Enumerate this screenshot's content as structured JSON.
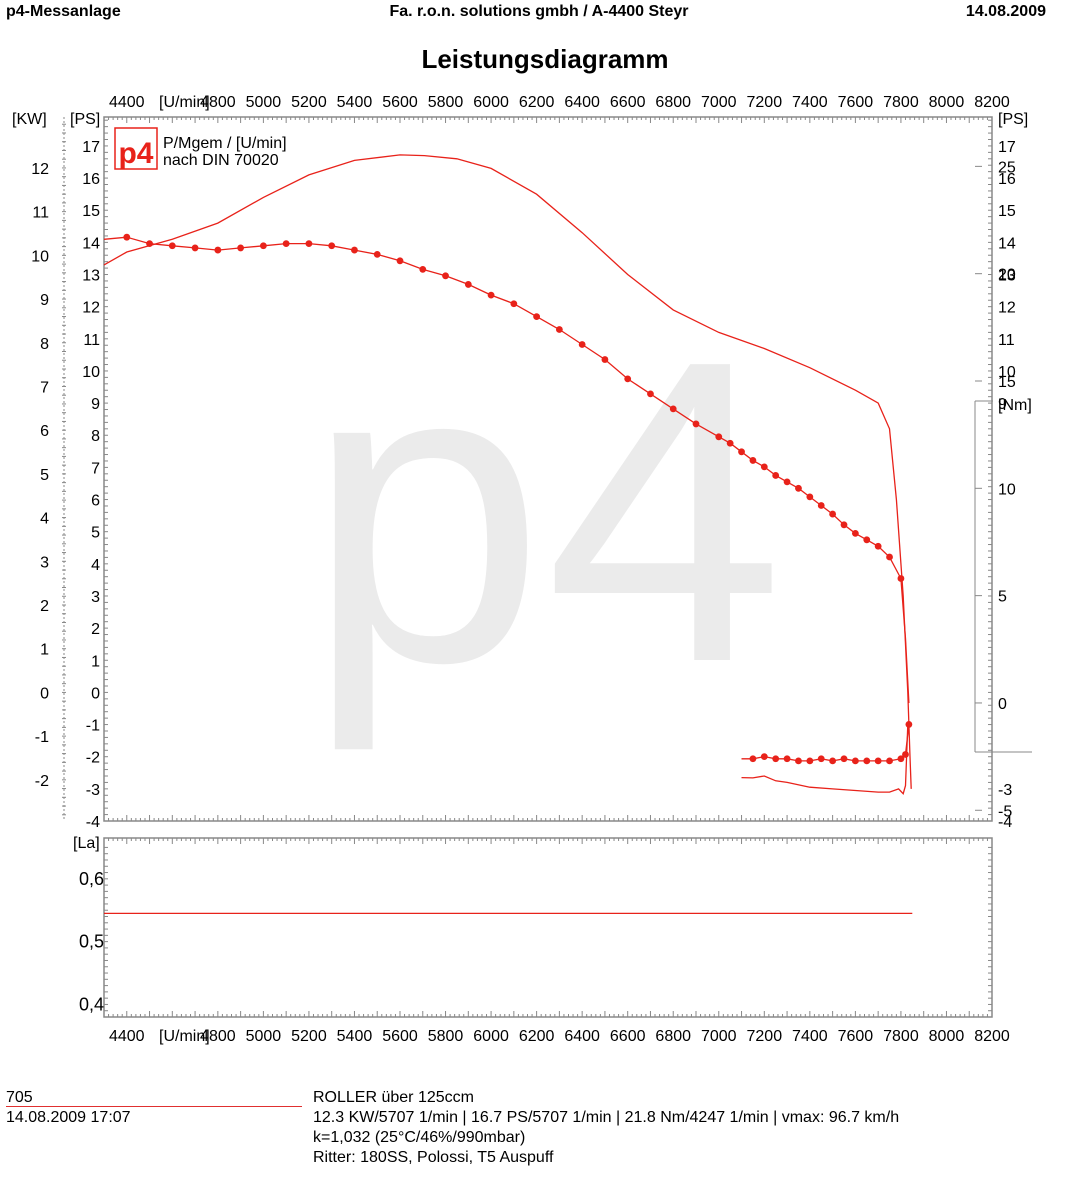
{
  "header": {
    "left": "p4-Messanlage",
    "center": "Fa. r.o.n. solutions gmbh / A-4400 Steyr",
    "right": "14.08.2009"
  },
  "title": "Leistungsdiagramm",
  "legend": {
    "logo": "p4",
    "line1": "P/Mgem / [U/min]",
    "line2": "nach DIN 70020"
  },
  "watermark": "p4",
  "colors": {
    "curve": "#e8221a",
    "axis": "#888888",
    "text": "#000000"
  },
  "chart_data": [
    {
      "type": "line",
      "title": "",
      "xlabel": "[U/min]",
      "ylabel_left_kw": "[KW]",
      "ylabel_left_ps": "[PS]",
      "ylabel_right_ps": "[PS]",
      "ylabel_right_nm": "[Nm]",
      "xlim": [
        4300,
        8200
      ],
      "x_ticks": [
        4400,
        4800,
        5000,
        5200,
        5400,
        5600,
        5800,
        6000,
        6200,
        6400,
        6600,
        6800,
        7000,
        7200,
        7400,
        7600,
        7800,
        8000,
        8200
      ],
      "kw_ticks": [
        12,
        11,
        10,
        9,
        8,
        7,
        6,
        5,
        4,
        3,
        2,
        1,
        0,
        -1,
        -2
      ],
      "ps_ticks": [
        17,
        16,
        15,
        14,
        13,
        12,
        11,
        10,
        9,
        8,
        7,
        6,
        5,
        4,
        3,
        2,
        1,
        0,
        -1,
        -2,
        -3,
        -4
      ],
      "ps_right_ticks": [
        17,
        16,
        15,
        14,
        13,
        12,
        11,
        10,
        9,
        -3,
        -4
      ],
      "nm_ticks": [
        25,
        20,
        15,
        10,
        5,
        0,
        -5
      ],
      "ylim_ps": [
        -4,
        17.9
      ],
      "ylim_nm": [
        -5.5,
        27.3
      ],
      "grid": false,
      "series": [
        {
          "unit": "PS",
          "x": [
            4300,
            4400,
            4600,
            4800,
            5000,
            5200,
            5400,
            5600,
            5707,
            5850,
            6000,
            6200,
            6400,
            6600,
            6800,
            7000,
            7200,
            7400,
            7600,
            7700,
            7750,
            7780,
            7810,
            7830,
            7840,
            7845
          ],
          "values": [
            13.3,
            13.7,
            14.1,
            14.6,
            15.4,
            16.1,
            16.55,
            16.72,
            16.7,
            16.6,
            16.3,
            15.5,
            14.3,
            13.0,
            11.9,
            11.2,
            10.7,
            10.1,
            9.4,
            9.0,
            8.2,
            6.0,
            3.0,
            0.0,
            -2.0,
            -3.0
          ]
        },
        {
          "unit": "Nm",
          "x": [
            4300,
            4400,
            4500,
            4600,
            4700,
            4800,
            4900,
            5000,
            5100,
            5200,
            5300,
            5400,
            5500,
            5600,
            5700,
            5800,
            5900,
            6000,
            6100,
            6200,
            6300,
            6400,
            6500,
            6600,
            6700,
            6800,
            6900,
            7000,
            7050,
            7100,
            7150,
            7200,
            7250,
            7300,
            7350,
            7400,
            7450,
            7500,
            7550,
            7600,
            7650,
            7700,
            7750,
            7800,
            7820,
            7835
          ],
          "values": [
            21.6,
            21.7,
            21.4,
            21.3,
            21.2,
            21.1,
            21.2,
            21.3,
            21.4,
            21.4,
            21.3,
            21.1,
            20.9,
            20.6,
            20.2,
            19.9,
            19.5,
            19.0,
            18.6,
            18.0,
            17.4,
            16.7,
            16.0,
            15.1,
            14.4,
            13.7,
            13.0,
            12.4,
            12.1,
            11.7,
            11.3,
            11.0,
            10.6,
            10.3,
            10.0,
            9.6,
            9.2,
            8.8,
            8.3,
            7.9,
            7.6,
            7.3,
            6.8,
            5.8,
            3.0,
            0.0
          ]
        },
        {
          "unit": "Nm",
          "x": [
            7100,
            7150,
            7200,
            7250,
            7300,
            7350,
            7400,
            7450,
            7500,
            7550,
            7600,
            7650,
            7700,
            7750,
            7800,
            7820,
            7835
          ],
          "values": [
            -2.6,
            -2.6,
            -2.5,
            -2.6,
            -2.6,
            -2.7,
            -2.7,
            -2.6,
            -2.7,
            -2.6,
            -2.7,
            -2.7,
            -2.7,
            -2.7,
            -2.6,
            -2.4,
            -1.0
          ]
        },
        {
          "unit": "PS",
          "x": [
            7100,
            7150,
            7200,
            7250,
            7300,
            7400,
            7500,
            7600,
            7700,
            7750,
            7790,
            7810,
            7820,
            7830
          ],
          "values": [
            -2.65,
            -2.66,
            -2.6,
            -2.75,
            -2.8,
            -2.95,
            -3.0,
            -3.05,
            -3.1,
            -3.1,
            -3.0,
            -3.15,
            -2.9,
            -1.0
          ]
        }
      ]
    },
    {
      "type": "line",
      "title": "",
      "xlabel": "[U/min]",
      "ylabel": "[La]",
      "xlim": [
        4300,
        8200
      ],
      "x_ticks": [
        4400,
        4800,
        5000,
        5200,
        5400,
        5600,
        5800,
        6000,
        6200,
        6400,
        6600,
        6800,
        7000,
        7200,
        7400,
        7600,
        7800,
        8000,
        8200
      ],
      "y_ticks": [
        "0,6",
        "0,5",
        "0,4"
      ],
      "ylim": [
        0.38,
        0.665
      ],
      "series": [
        {
          "x": [
            4300,
            7850
          ],
          "values": [
            0.545,
            0.545
          ]
        }
      ]
    }
  ],
  "footer": {
    "id": "705",
    "datetime": "14.08.2009  17:07",
    "lines": [
      "ROLLER über 125ccm",
      "12.3 KW/5707 1/min  |  16.7 PS/5707 1/min  |  21.8 Nm/4247 1/min | vmax: 96.7 km/h",
      "k=1,032 (25°C/46%/990mbar)",
      "Ritter: 180SS, Polossi, T5 Auspuff"
    ]
  }
}
